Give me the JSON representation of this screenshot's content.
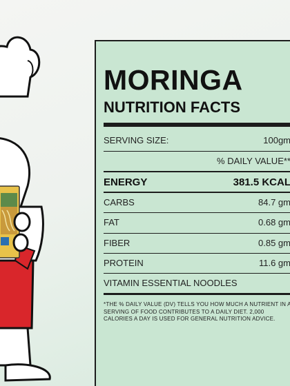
{
  "label": {
    "title": "MORINGA",
    "subtitle": "NUTRITION FACTS",
    "serving_label": "SERVING SIZE:",
    "serving_value": "100gm",
    "daily_value_header": "% DAILY VALUE**",
    "rows": [
      {
        "name": "ENERGY",
        "value": "381.5 KCAL"
      },
      {
        "name": "CARBS",
        "value": "84.7 gm"
      },
      {
        "name": "FAT",
        "value": "0.68 gm"
      },
      {
        "name": "FIBER",
        "value": "0.85 gm"
      },
      {
        "name": "PROTEIN",
        "value": "11.6 gm"
      }
    ],
    "product_line": "VITAMIN ESSENTIAL NOODLES",
    "footnote": "*THE % DAILY VALUE (DV) TELLS YOU HOW MUCH A NUTRIENT IN A SERVING OF FOOD CONTRIBUTES TO A DAILY DIET. 2,000 CALORIES A DAY IS USED FOR GENERAL NUTRITION ADVICE."
  },
  "colors": {
    "panel_bg": "#c9e6d2",
    "ink": "#111111",
    "apron": "#d9262b",
    "package": "#e8c24a"
  },
  "mascot": {
    "icon": "chef-mascot-holding-noodle-pack-icon"
  }
}
